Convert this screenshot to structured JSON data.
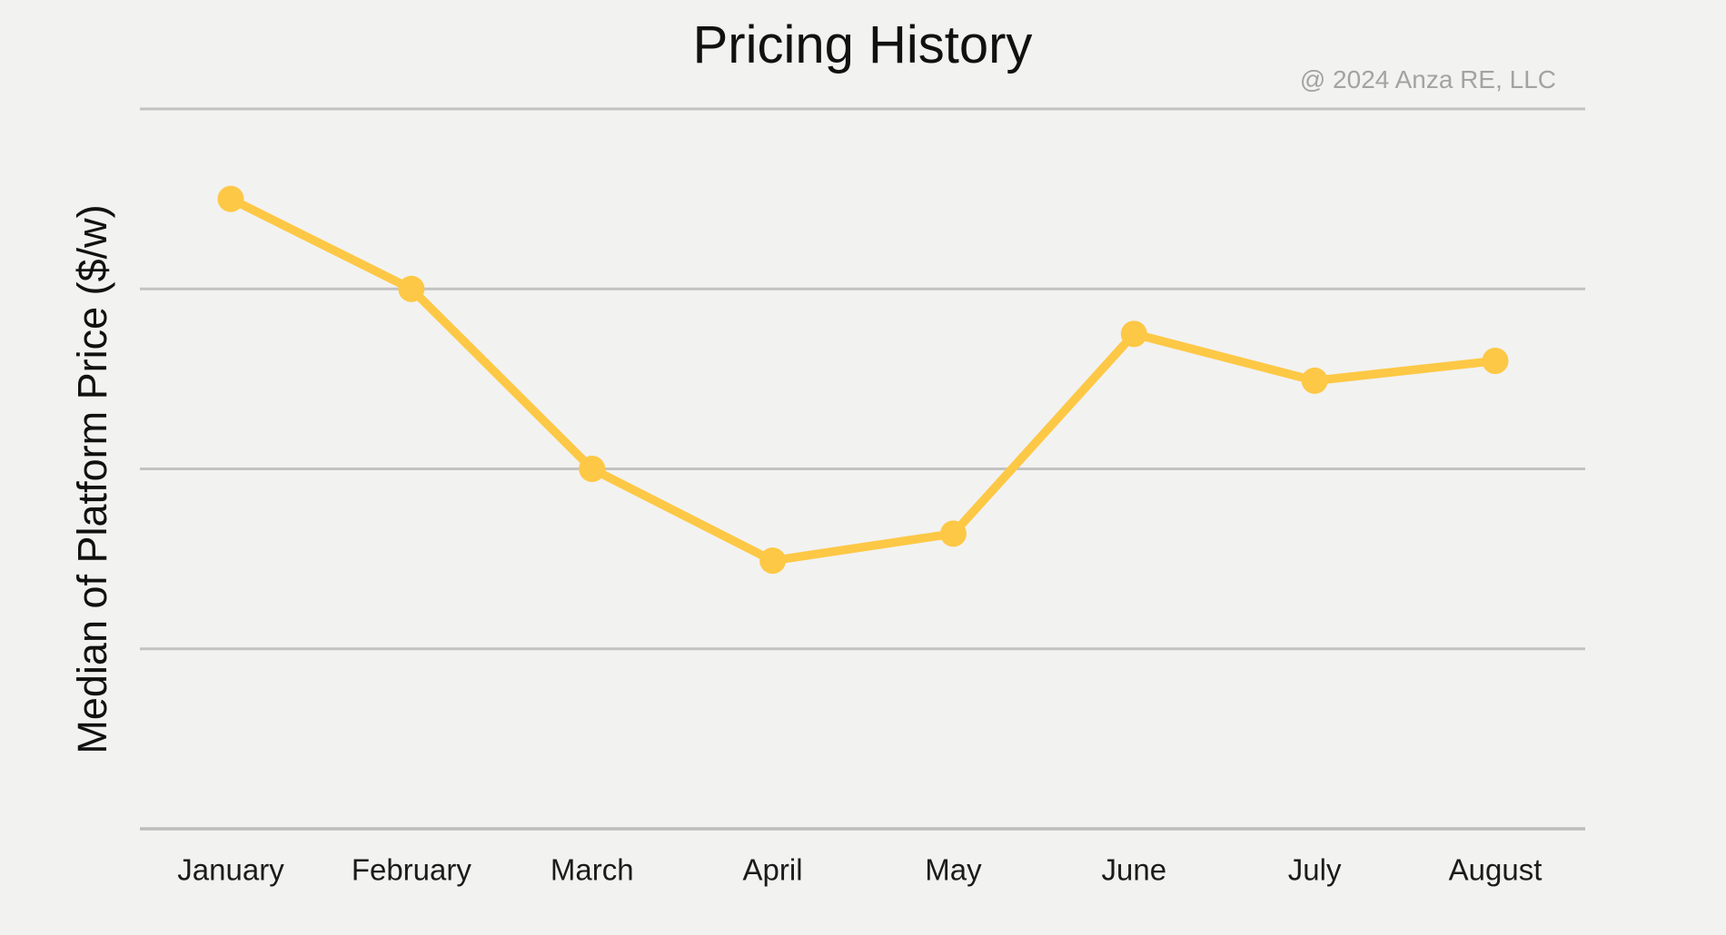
{
  "attribution": "@ 2024 Anza RE, LLC",
  "chart_data": {
    "type": "line",
    "title": "Pricing History",
    "xlabel": "",
    "ylabel": "Median of Platform Price ($/w)",
    "categories": [
      "January",
      "February",
      "March",
      "April",
      "May",
      "June",
      "July",
      "August"
    ],
    "series": [
      {
        "name": "Median of Platform Price ($/w)",
        "values": [
          3.5,
          3.0,
          2.0,
          1.49,
          1.64,
          2.75,
          2.49,
          2.6
        ]
      }
    ],
    "value_scale_note": "y-axis shows no numeric tick labels; values estimated in gridline units (1 unit = one gridline spacing, baseline = 0)",
    "y_axis": {
      "min": 0,
      "max": 4,
      "gridlines": [
        1,
        2,
        3,
        4
      ],
      "tick_labels_visible": false
    },
    "x_axis": {
      "tick_labels_visible": true
    },
    "legend": "none",
    "grid": "horizontal",
    "colors": {
      "line": "#FDC845",
      "marker": "#FDC845",
      "gridline": "#C3C3C3",
      "axis_line": "#BDBDBD",
      "background": "#F2F2F1",
      "title_text": "#111111",
      "tick_label_text": "#1B1B1B",
      "attribution_text": "#A3A3A3"
    }
  }
}
